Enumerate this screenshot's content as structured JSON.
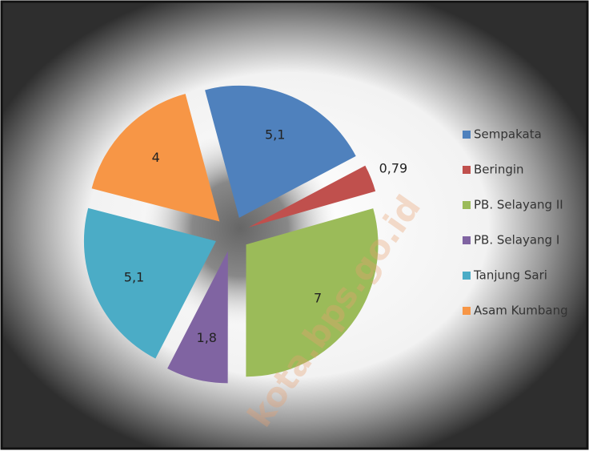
{
  "chart_data": {
    "type": "pie",
    "categories": [
      "Sempakata",
      "Beringin",
      "PB. Selayang II",
      "PB. Selayang I",
      "Tanjung Sari",
      "Asam Kumbang"
    ],
    "values": [
      5.1,
      0.79,
      7,
      1.8,
      5.1,
      4
    ],
    "value_labels": [
      "5,1",
      "0,79",
      "7",
      "1,8",
      "5,1",
      "4"
    ],
    "colors": [
      "#4f81bd",
      "#c0504d",
      "#9bbb59",
      "#8064a2",
      "#4bacc6",
      "#f79646"
    ],
    "legend": "right",
    "watermark": "kota.bps.go.id"
  }
}
